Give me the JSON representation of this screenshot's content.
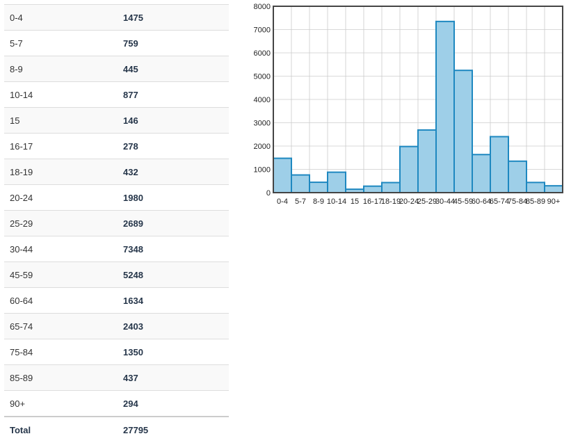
{
  "table": {
    "rows": [
      {
        "label": "0-4",
        "value": "1475"
      },
      {
        "label": "5-7",
        "value": "759"
      },
      {
        "label": "8-9",
        "value": "445"
      },
      {
        "label": "10-14",
        "value": "877"
      },
      {
        "label": "15",
        "value": "146"
      },
      {
        "label": "16-17",
        "value": "278"
      },
      {
        "label": "18-19",
        "value": "432"
      },
      {
        "label": "20-24",
        "value": "1980"
      },
      {
        "label": "25-29",
        "value": "2689"
      },
      {
        "label": "30-44",
        "value": "7348"
      },
      {
        "label": "45-59",
        "value": "5248"
      },
      {
        "label": "60-64",
        "value": "1634"
      },
      {
        "label": "65-74",
        "value": "2403"
      },
      {
        "label": "75-84",
        "value": "1350"
      },
      {
        "label": "85-89",
        "value": "437"
      },
      {
        "label": "90+",
        "value": "294"
      }
    ],
    "total_label": "Total",
    "total_value": "27795"
  },
  "chart_data": {
    "type": "bar",
    "categories": [
      "0-4",
      "5-7",
      "8-9",
      "10-14",
      "15",
      "16-17",
      "18-19",
      "20-24",
      "25-29",
      "30-44",
      "45-59",
      "60-64",
      "65-74",
      "75-84",
      "85-89",
      "90+"
    ],
    "values": [
      1475,
      759,
      445,
      877,
      146,
      278,
      432,
      1980,
      2689,
      7348,
      5248,
      1634,
      2403,
      1350,
      437,
      294
    ],
    "ylim": [
      0,
      8000
    ],
    "yticks": [
      0,
      1000,
      2000,
      3000,
      4000,
      5000,
      6000,
      7000,
      8000
    ],
    "grid": true,
    "colors": {
      "bar_fill": "#9ecfe8",
      "bar_stroke": "#1e88c0",
      "grid": "#cccccc",
      "frame": "#444444"
    }
  }
}
